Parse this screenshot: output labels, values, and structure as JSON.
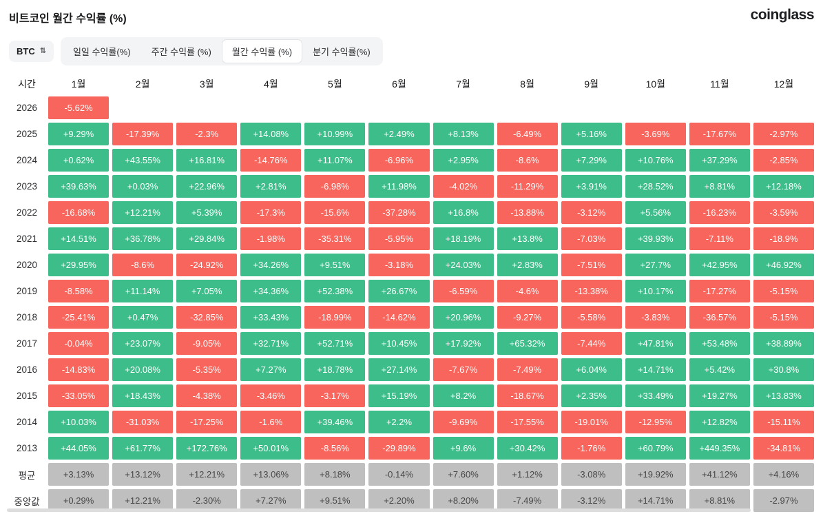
{
  "header": {
    "title": "비트코인 월간 수익률 (%)",
    "logo": "coinglass"
  },
  "controls": {
    "coin_select": "BTC",
    "updown_icon": "⇅",
    "tabs": [
      {
        "label": "일일 수익률(%)",
        "active": false
      },
      {
        "label": "주간 수익률 (%)",
        "active": false
      },
      {
        "label": "월간 수익률 (%)",
        "active": true
      },
      {
        "label": "분기 수익률(%)",
        "active": false
      }
    ]
  },
  "colors": {
    "positive": "#3dbd89",
    "negative": "#f7655c",
    "summary_bg": "#bfbfbf",
    "summary_text": "#474747"
  },
  "chart_data": {
    "type": "heatmap",
    "title": "비트코인 월간 수익률 (%)",
    "xlabel": "월",
    "ylabel": "시간",
    "legend_position": "none",
    "grid": false,
    "corner_label": "시간",
    "columns": [
      "1월",
      "2월",
      "3월",
      "4월",
      "5월",
      "6월",
      "7월",
      "8월",
      "9월",
      "10월",
      "11월",
      "12월"
    ],
    "rows": [
      {
        "label": "2026",
        "kind": "year",
        "values": [
          "-5.62%",
          "",
          "",
          "",
          "",
          "",
          "",
          "",
          "",
          "",
          "",
          ""
        ]
      },
      {
        "label": "2025",
        "kind": "year",
        "values": [
          "+9.29%",
          "-17.39%",
          "-2.3%",
          "+14.08%",
          "+10.99%",
          "+2.49%",
          "+8.13%",
          "-6.49%",
          "+5.16%",
          "-3.69%",
          "-17.67%",
          "-2.97%"
        ]
      },
      {
        "label": "2024",
        "kind": "year",
        "values": [
          "+0.62%",
          "+43.55%",
          "+16.81%",
          "-14.76%",
          "+11.07%",
          "-6.96%",
          "+2.95%",
          "-8.6%",
          "+7.29%",
          "+10.76%",
          "+37.29%",
          "-2.85%"
        ]
      },
      {
        "label": "2023",
        "kind": "year",
        "values": [
          "+39.63%",
          "+0.03%",
          "+22.96%",
          "+2.81%",
          "-6.98%",
          "+11.98%",
          "-4.02%",
          "-11.29%",
          "+3.91%",
          "+28.52%",
          "+8.81%",
          "+12.18%"
        ]
      },
      {
        "label": "2022",
        "kind": "year",
        "values": [
          "-16.68%",
          "+12.21%",
          "+5.39%",
          "-17.3%",
          "-15.6%",
          "-37.28%",
          "+16.8%",
          "-13.88%",
          "-3.12%",
          "+5.56%",
          "-16.23%",
          "-3.59%"
        ]
      },
      {
        "label": "2021",
        "kind": "year",
        "values": [
          "+14.51%",
          "+36.78%",
          "+29.84%",
          "-1.98%",
          "-35.31%",
          "-5.95%",
          "+18.19%",
          "+13.8%",
          "-7.03%",
          "+39.93%",
          "-7.11%",
          "-18.9%"
        ]
      },
      {
        "label": "2020",
        "kind": "year",
        "values": [
          "+29.95%",
          "-8.6%",
          "-24.92%",
          "+34.26%",
          "+9.51%",
          "-3.18%",
          "+24.03%",
          "+2.83%",
          "-7.51%",
          "+27.7%",
          "+42.95%",
          "+46.92%"
        ]
      },
      {
        "label": "2019",
        "kind": "year",
        "values": [
          "-8.58%",
          "+11.14%",
          "+7.05%",
          "+34.36%",
          "+52.38%",
          "+26.67%",
          "-6.59%",
          "-4.6%",
          "-13.38%",
          "+10.17%",
          "-17.27%",
          "-5.15%"
        ]
      },
      {
        "label": "2018",
        "kind": "year",
        "values": [
          "-25.41%",
          "+0.47%",
          "-32.85%",
          "+33.43%",
          "-18.99%",
          "-14.62%",
          "+20.96%",
          "-9.27%",
          "-5.58%",
          "-3.83%",
          "-36.57%",
          "-5.15%"
        ]
      },
      {
        "label": "2017",
        "kind": "year",
        "values": [
          "-0.04%",
          "+23.07%",
          "-9.05%",
          "+32.71%",
          "+52.71%",
          "+10.45%",
          "+17.92%",
          "+65.32%",
          "-7.44%",
          "+47.81%",
          "+53.48%",
          "+38.89%"
        ]
      },
      {
        "label": "2016",
        "kind": "year",
        "values": [
          "-14.83%",
          "+20.08%",
          "-5.35%",
          "+7.27%",
          "+18.78%",
          "+27.14%",
          "-7.67%",
          "-7.49%",
          "+6.04%",
          "+14.71%",
          "+5.42%",
          "+30.8%"
        ]
      },
      {
        "label": "2015",
        "kind": "year",
        "values": [
          "-33.05%",
          "+18.43%",
          "-4.38%",
          "-3.46%",
          "-3.17%",
          "+15.19%",
          "+8.2%",
          "-18.67%",
          "+2.35%",
          "+33.49%",
          "+19.27%",
          "+13.83%"
        ]
      },
      {
        "label": "2014",
        "kind": "year",
        "values": [
          "+10.03%",
          "-31.03%",
          "-17.25%",
          "-1.6%",
          "+39.46%",
          "+2.2%",
          "-9.69%",
          "-17.55%",
          "-19.01%",
          "-12.95%",
          "+12.82%",
          "-15.11%"
        ]
      },
      {
        "label": "2013",
        "kind": "year",
        "values": [
          "+44.05%",
          "+61.77%",
          "+172.76%",
          "+50.01%",
          "-8.56%",
          "-29.89%",
          "+9.6%",
          "+30.42%",
          "-1.76%",
          "+60.79%",
          "+449.35%",
          "-34.81%"
        ]
      },
      {
        "label": "평균",
        "kind": "summary",
        "values": [
          "+3.13%",
          "+13.12%",
          "+12.21%",
          "+13.06%",
          "+8.18%",
          "-0.14%",
          "+7.60%",
          "+1.12%",
          "-3.08%",
          "+19.92%",
          "+41.12%",
          "+4.16%"
        ]
      },
      {
        "label": "중앙값",
        "kind": "summary",
        "values": [
          "+0.29%",
          "+12.21%",
          "-2.30%",
          "+7.27%",
          "+9.51%",
          "+2.20%",
          "+8.20%",
          "-7.49%",
          "-3.12%",
          "+14.71%",
          "+8.81%",
          "-2.97%"
        ]
      }
    ]
  }
}
